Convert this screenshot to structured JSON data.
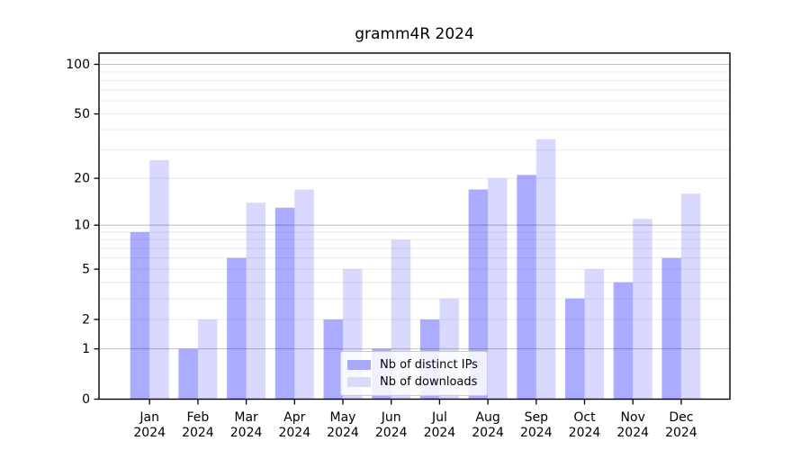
{
  "chart_data": {
    "type": "bar",
    "title": "gramm4R 2024",
    "categories": [
      "Jan",
      "Feb",
      "Mar",
      "Apr",
      "May",
      "Jun",
      "Jul",
      "Aug",
      "Sep",
      "Oct",
      "Nov",
      "Dec"
    ],
    "x_tick_second_line": "2024",
    "series": [
      {
        "name": "Nb of distinct IPs",
        "color": "#a9a9fb",
        "fill": "rgba(0,0,255,0.33)",
        "values": [
          9,
          1,
          6,
          13,
          2,
          1,
          2,
          17,
          21,
          3,
          4,
          6
        ]
      },
      {
        "name": "Nb of downloads",
        "color": "#d9d9fc",
        "fill": "rgba(0,0,255,0.15)",
        "values": [
          26,
          2,
          14,
          17,
          5,
          8,
          3,
          20,
          35,
          5,
          11,
          16
        ]
      }
    ],
    "y_axis": {
      "scale": "log1p",
      "tick_labels": [
        "0",
        "1",
        "2",
        "5",
        "10",
        "20",
        "50",
        "100"
      ],
      "tick_values": [
        0,
        1,
        2,
        5,
        10,
        20,
        50,
        100
      ],
      "major_gridlines": [
        1,
        10,
        100
      ],
      "minor_gridlines": [
        2,
        3,
        4,
        5,
        6,
        7,
        8,
        9,
        20,
        30,
        40,
        50,
        60,
        70,
        80,
        90
      ],
      "ylim": [
        0,
        117
      ]
    },
    "grid": true,
    "legend_position": "lower center",
    "colors": {
      "major_gridline": "#c1c1c1",
      "minor_gridline": "#ebebeb",
      "spine": "#000000",
      "tick_text": "#000000"
    }
  }
}
